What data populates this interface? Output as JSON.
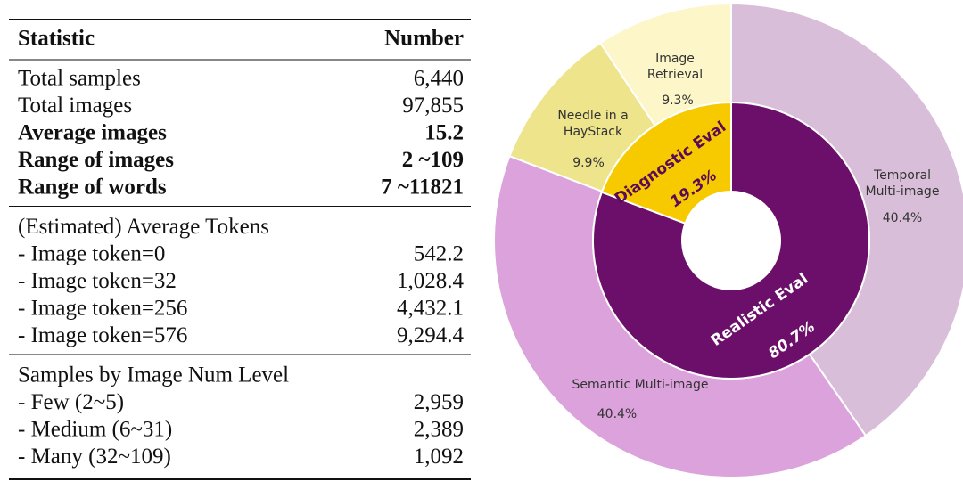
{
  "table": {
    "header": [
      "Statistic",
      "Number"
    ],
    "sections": [
      {
        "rows": [
          {
            "cells": [
              "Total samples",
              "6,440"
            ],
            "bold": false
          },
          {
            "cells": [
              "Total images",
              "97,855"
            ],
            "bold": false
          },
          {
            "cells": [
              "Average images",
              "15.2"
            ],
            "bold": true
          },
          {
            "cells": [
              "Range of images",
              "2 ~109"
            ],
            "bold": true
          },
          {
            "cells": [
              "Range of words",
              "7 ~11821"
            ],
            "bold": true
          }
        ]
      },
      {
        "rows": [
          {
            "cells": [
              "(Estimated) Average Tokens",
              ""
            ],
            "bold": false
          },
          {
            "cells": [
              "- Image token=0",
              "542.2"
            ],
            "bold": false
          },
          {
            "cells": [
              "- Image token=32",
              "1,028.4"
            ],
            "bold": false
          },
          {
            "cells": [
              "- Image token=256",
              "4,432.1"
            ],
            "bold": false
          },
          {
            "cells": [
              "- Image token=576",
              "9,294.4"
            ],
            "bold": false
          }
        ]
      },
      {
        "rows": [
          {
            "cells": [
              "Samples by Image Num Level",
              ""
            ],
            "bold": false
          },
          {
            "cells": [
              "- Few (2~5)",
              "2,959"
            ],
            "bold": false
          },
          {
            "cells": [
              "- Medium (6~31)",
              "2,389"
            ],
            "bold": false
          },
          {
            "cells": [
              "- Many (32~109)",
              "1,092"
            ],
            "bold": false
          }
        ]
      }
    ]
  },
  "chart_data": {
    "type": "sunburst",
    "inner": {
      "names": [
        "Realistic Eval",
        "Diagnostic Eval"
      ],
      "values": [
        80.7,
        19.3
      ],
      "value_labels": [
        "80.7%",
        "19.3%"
      ],
      "colors": [
        "#6c0f6a",
        "#f7ca00"
      ]
    },
    "outer": {
      "names": [
        [
          "Temporal",
          "Multi-image"
        ],
        [
          "Semantic Multi-image"
        ],
        [
          "Needle in a",
          "HayStack"
        ],
        [
          "Image",
          "Retrieval"
        ]
      ],
      "values": [
        40.4,
        40.4,
        9.9,
        9.3
      ],
      "value_labels": [
        "40.4%",
        "40.4%",
        "9.9%",
        "9.3%"
      ],
      "colors": [
        "#d8bed8",
        "#dca2dc",
        "#ede48c",
        "#fcf6c9"
      ]
    }
  }
}
